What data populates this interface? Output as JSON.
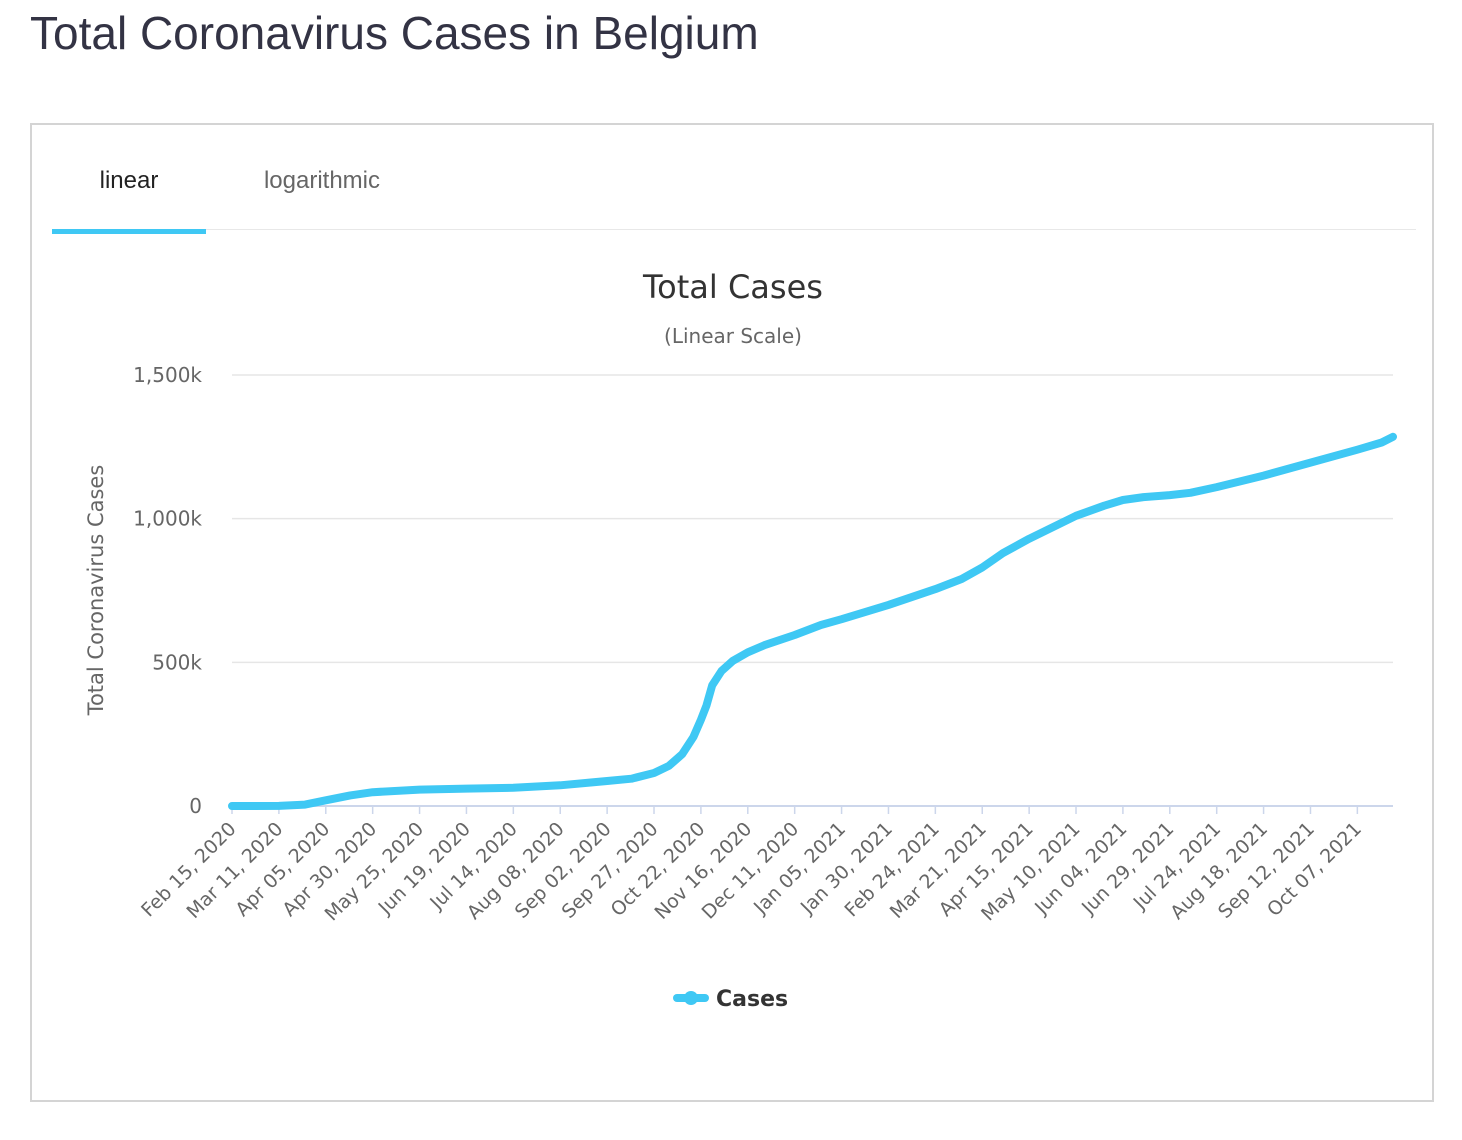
{
  "page": {
    "title": "Total Coronavirus Cases in Belgium"
  },
  "tabs": [
    {
      "label": "linear",
      "active": true
    },
    {
      "label": "logarithmic",
      "active": false
    }
  ],
  "colors": {
    "series": "#3fc8f4",
    "grid": "#e6e6e6",
    "axis_line": "#ccd6eb",
    "text": "#666666",
    "title": "#333333"
  },
  "chart_data": {
    "type": "line",
    "title": "Total Cases",
    "subtitle": "(Linear Scale)",
    "ylabel": "Total Coronavirus Cases",
    "xlabel": "",
    "ylim": [
      0,
      1500000
    ],
    "yticks": [
      0,
      500000,
      1000000,
      1500000
    ],
    "ytick_labels": [
      "0",
      "500k",
      "1,000k",
      "1,500k"
    ],
    "x_start": "Feb 15, 2020",
    "x_end": "Oct 26, 2021",
    "x_tick_labels": [
      "Feb 15, 2020",
      "Mar 11, 2020",
      "Apr 05, 2020",
      "Apr 30, 2020",
      "May 25, 2020",
      "Jun 19, 2020",
      "Jul 14, 2020",
      "Aug 08, 2020",
      "Sep 02, 2020",
      "Sep 27, 2020",
      "Oct 22, 2020",
      "Nov 16, 2020",
      "Dec 11, 2020",
      "Jan 05, 2021",
      "Jan 30, 2021",
      "Feb 24, 2021",
      "Mar 21, 2021",
      "Apr 15, 2021",
      "May 10, 2021",
      "Jun 04, 2021",
      "Jun 29, 2021",
      "Jul 24, 2021",
      "Aug 18, 2021",
      "Sep 12, 2021",
      "Oct 07, 2021"
    ],
    "grid": true,
    "legend_position": "bottom-center",
    "series": [
      {
        "name": "Cases",
        "points": [
          [
            "Feb 15, 2020",
            0
          ],
          [
            "Mar 11, 2020",
            300
          ],
          [
            "Mar 25, 2020",
            5000
          ],
          [
            "Apr 05, 2020",
            20000
          ],
          [
            "Apr 18, 2020",
            37000
          ],
          [
            "Apr 30, 2020",
            48000
          ],
          [
            "May 25, 2020",
            57000
          ],
          [
            "Jun 19, 2020",
            60500
          ],
          [
            "Jul 14, 2020",
            63500
          ],
          [
            "Aug 08, 2020",
            72000
          ],
          [
            "Aug 25, 2020",
            82000
          ],
          [
            "Sep 02, 2020",
            87000
          ],
          [
            "Sep 15, 2020",
            95000
          ],
          [
            "Sep 27, 2020",
            115000
          ],
          [
            "Oct 05, 2020",
            140000
          ],
          [
            "Oct 12, 2020",
            180000
          ],
          [
            "Oct 18, 2020",
            240000
          ],
          [
            "Oct 22, 2020",
            300000
          ],
          [
            "Oct 25, 2020",
            350000
          ],
          [
            "Oct 28, 2020",
            420000
          ],
          [
            "Nov 02, 2020",
            470000
          ],
          [
            "Nov 08, 2020",
            505000
          ],
          [
            "Nov 16, 2020",
            535000
          ],
          [
            "Nov 25, 2020",
            560000
          ],
          [
            "Dec 11, 2020",
            595000
          ],
          [
            "Dec 25, 2020",
            630000
          ],
          [
            "Jan 05, 2021",
            650000
          ],
          [
            "Jan 30, 2021",
            700000
          ],
          [
            "Feb 24, 2021",
            755000
          ],
          [
            "Mar 10, 2021",
            790000
          ],
          [
            "Mar 21, 2021",
            830000
          ],
          [
            "Apr 01, 2021",
            880000
          ],
          [
            "Apr 15, 2021",
            930000
          ],
          [
            "May 10, 2021",
            1010000
          ],
          [
            "May 25, 2021",
            1045000
          ],
          [
            "Jun 04, 2021",
            1065000
          ],
          [
            "Jun 15, 2021",
            1075000
          ],
          [
            "Jun 29, 2021",
            1082000
          ],
          [
            "Jul 10, 2021",
            1090000
          ],
          [
            "Jul 24, 2021",
            1110000
          ],
          [
            "Aug 18, 2021",
            1150000
          ],
          [
            "Sep 12, 2021",
            1195000
          ],
          [
            "Oct 07, 2021",
            1240000
          ],
          [
            "Oct 20, 2021",
            1265000
          ],
          [
            "Oct 26, 2021",
            1285000
          ]
        ]
      }
    ]
  }
}
